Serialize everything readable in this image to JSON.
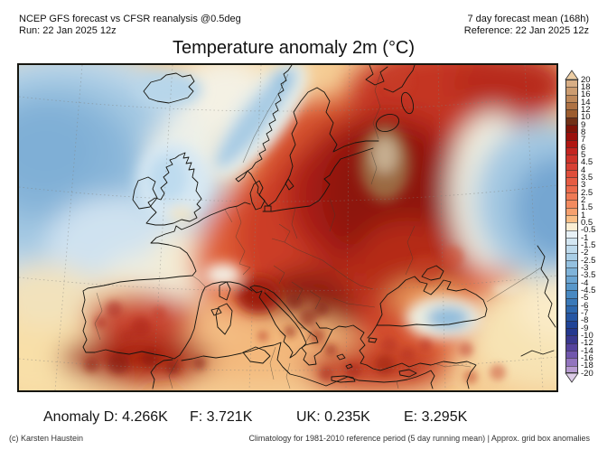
{
  "header": {
    "left": {
      "line1": "NCEP GFS forecast vs CFSR reanalysis @0.5deg",
      "line2": "Run: 22 Jan 2025 12z"
    },
    "right": {
      "line1": "7 day forecast mean (168h)",
      "line2": "Reference: 22 Jan 2025 12z"
    }
  },
  "title": "Temperature anomaly 2m (°C)",
  "colorbar": {
    "ticks": [
      "20",
      "18",
      "16",
      "14",
      "12",
      "10",
      "9",
      "8",
      "7",
      "6",
      "5",
      "4.5",
      "4",
      "3.5",
      "3",
      "2.5",
      "2",
      "1.5",
      "1",
      "0.5",
      "-0.5",
      "-1",
      "-1.5",
      "-2",
      "-2.5",
      "-3",
      "-3.5",
      "-4",
      "-4.5",
      "-5",
      "-6",
      "-7",
      "-8",
      "-9",
      "-10",
      "-12",
      "-14",
      "-16",
      "-18",
      "-20"
    ],
    "segment_colors": [
      "#D8AE85",
      "#CC9C70",
      "#BE885A",
      "#AE7244",
      "#9C5C2E",
      "#713016",
      "#7F1408",
      "#9A100C",
      "#B01612",
      "#C32420",
      "#CE332A",
      "#D84034",
      "#DF4E3B",
      "#E65C43",
      "#EB6A4C",
      "#EF7A55",
      "#F38B60",
      "#F6A06E",
      "#F9BE86",
      "#FBEED3",
      "#E8F1F6",
      "#D3E6F2",
      "#BEDAEC",
      "#A9CEE6",
      "#94C1E0",
      "#7FB3D9",
      "#6BA5D2",
      "#5897CA",
      "#4889C2",
      "#3A79B8",
      "#2E68AE",
      "#2656A3",
      "#204497",
      "#24388F",
      "#39388F",
      "#55439D",
      "#7157AD",
      "#9274BE",
      "#B79BD1"
    ],
    "top_triangle_color": "#ECCDA4",
    "bottom_triangle_color": "#DCCCE7"
  },
  "stats": {
    "items": [
      "Anomaly D: 4.266K",
      "F: 3.721K",
      "UK: 0.235K",
      "E: 3.295K"
    ]
  },
  "footer": {
    "credit": "(c) Karsten Haustein",
    "note": "Climatology for 1981-2010 reference period (5 day running mean) | Approx. grid box anomalies"
  },
  "map": {
    "region": "Europe and North Atlantic temperature anomaly field",
    "palette": {
      "warm_base": "#F5CB92",
      "hot_core": "#8E130A",
      "tan_core": "#C6AE90",
      "atlantic_cold": "#7FAFD6",
      "east_cold": "#74A6D1",
      "neutral_band": "#F4F1E4"
    }
  }
}
